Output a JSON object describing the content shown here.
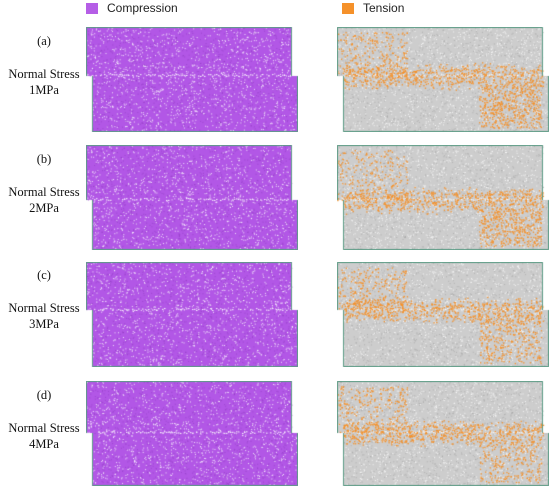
{
  "legend": [
    {
      "label": "Compression",
      "color": "#b55ee6"
    },
    {
      "label": "Tension",
      "color": "#f5912a"
    }
  ],
  "rows": [
    {
      "tag": "(a)",
      "line1": "Normal Stress",
      "line2": "1MPa"
    },
    {
      "tag": "(b)",
      "line1": "Normal Stress",
      "line2": "2MPa"
    },
    {
      "tag": "(c)",
      "line1": "Normal Stress",
      "line2": "3MPa"
    },
    {
      "tag": "(d)",
      "line1": "Normal Stress",
      "line2": "4MPa"
    }
  ],
  "colors": {
    "compression_fill": "#b257e6",
    "tension_fill": "#cdcdcd",
    "tension_marks": "#f5912a",
    "border": "#5c9c86"
  }
}
